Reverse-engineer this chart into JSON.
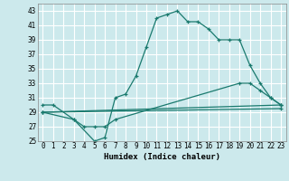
{
  "xlabel": "Humidex (Indice chaleur)",
  "background_color": "#cce9ec",
  "grid_color": "#ffffff",
  "line_color": "#1a7a6e",
  "ylim": [
    25,
    44
  ],
  "xlim": [
    -0.5,
    23.5
  ],
  "yticks": [
    25,
    27,
    29,
    31,
    33,
    35,
    37,
    39,
    41,
    43
  ],
  "xticks": [
    0,
    1,
    2,
    3,
    4,
    5,
    6,
    7,
    8,
    9,
    10,
    11,
    12,
    13,
    14,
    15,
    16,
    17,
    18,
    19,
    20,
    21,
    22,
    23
  ],
  "lines": [
    {
      "x": [
        0,
        1,
        3,
        5,
        6,
        7,
        8,
        9,
        10,
        11,
        12,
        13,
        14,
        15,
        16,
        17,
        18,
        19,
        20,
        21,
        22,
        23
      ],
      "y": [
        30,
        30,
        28,
        25,
        25.5,
        31,
        31.5,
        34,
        38,
        42,
        42.5,
        43,
        41.5,
        41.5,
        40.5,
        39,
        39,
        39,
        35.5,
        33,
        31,
        30
      ]
    },
    {
      "x": [
        0,
        3,
        4,
        5,
        6,
        7,
        19,
        20,
        21,
        22,
        23
      ],
      "y": [
        29,
        28,
        27,
        27,
        27,
        28,
        33,
        33,
        32,
        31,
        30
      ]
    },
    {
      "x": [
        0,
        23
      ],
      "y": [
        29,
        30
      ]
    },
    {
      "x": [
        0,
        23
      ],
      "y": [
        29,
        29.5
      ]
    }
  ]
}
